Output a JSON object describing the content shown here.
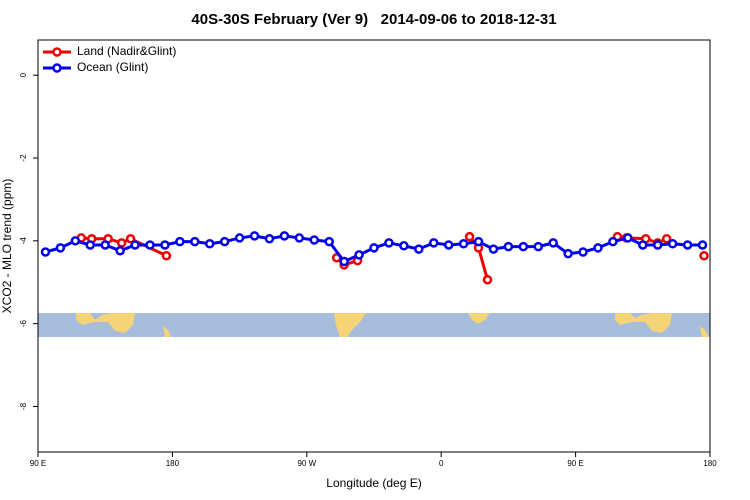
{
  "chart_data": {
    "type": "line",
    "title": "40S-30S February (Ver 9)   2014-09-06 to 2018-12-31",
    "x_label": "Longitude (deg E)",
    "y_label": "XCO2 - MLO trend (ppm)",
    "xlim": [
      90,
      540
    ],
    "xticks": [
      {
        "value": 90,
        "label": "90 E"
      },
      180,
      {
        "value": 270,
        "label": "90 W"
      },
      {
        "value": 360,
        "label": "0"
      },
      {
        "value": 450,
        "label": "90 E"
      },
      180
    ],
    "ylim": [
      -9.1,
      0.85
    ],
    "yticks": [
      0,
      -2,
      -4,
      -6,
      -8
    ],
    "legend": "top-left",
    "series": [
      {
        "name": "Land (Nadir&Glint)",
        "color": "#ee0000",
        "x": [
          119,
          126,
          137,
          146,
          152,
          176,
          230,
          290,
          295,
          304,
          340,
          379,
          385,
          391,
          440,
          478,
          484,
          497,
          505,
          511,
          525,
          536
        ],
        "values": [
          -3.93,
          -3.95,
          -3.95,
          -4.05,
          -3.95,
          -4.36,
          null,
          -4.41,
          -4.58,
          -4.48,
          null,
          -3.9,
          -4.17,
          -4.94,
          null,
          -3.9,
          -3.93,
          -3.95,
          -4.05,
          -3.95,
          null,
          -4.36
        ]
      },
      {
        "name": "Ocean (Glint)",
        "color": "#0000ee",
        "x": [
          95,
          105,
          115,
          125,
          135,
          145,
          155,
          165,
          175,
          185,
          195,
          205,
          215,
          225,
          235,
          245,
          255,
          265,
          275,
          285,
          295,
          305,
          315,
          325,
          335,
          345,
          355,
          365,
          375,
          385,
          395,
          405,
          415,
          425,
          435,
          445,
          455,
          465,
          475,
          485,
          495,
          505,
          515,
          525,
          535
        ],
        "values": [
          -4.27,
          -4.17,
          -4.0,
          -4.1,
          -4.1,
          -4.24,
          -4.1,
          -4.1,
          -4.1,
          -4.02,
          -4.02,
          -4.07,
          -4.02,
          -3.93,
          -3.88,
          -3.95,
          -3.88,
          -3.93,
          -3.98,
          -4.02,
          -4.5,
          -4.34,
          -4.17,
          -4.05,
          -4.12,
          -4.2,
          -4.05,
          -4.1,
          -4.07,
          -4.02,
          -4.2,
          -4.14,
          -4.14,
          -4.14,
          -4.05,
          -4.31,
          -4.27,
          -4.17,
          -4.02,
          -3.93,
          -4.1,
          -4.1,
          -4.07,
          -4.1,
          -4.1
        ]
      }
    ]
  }
}
